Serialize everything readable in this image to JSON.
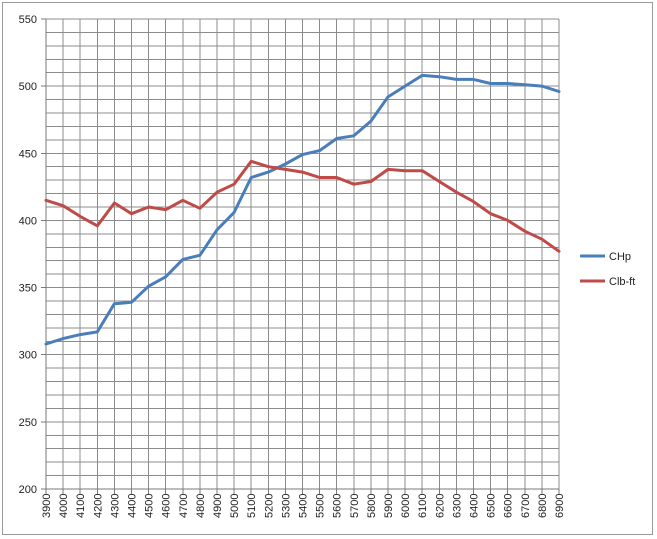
{
  "chart_data": {
    "type": "line",
    "title": "",
    "xlabel": "",
    "ylabel": "",
    "x": [
      3900,
      4000,
      4100,
      4200,
      4300,
      4400,
      4500,
      4600,
      4700,
      4800,
      4900,
      5000,
      5100,
      5200,
      5300,
      5400,
      5500,
      5600,
      5700,
      5800,
      5900,
      6000,
      6100,
      6200,
      6300,
      6400,
      6500,
      6600,
      6700,
      6800,
      6900
    ],
    "ylim": [
      200,
      550
    ],
    "yticks": [
      200,
      250,
      300,
      350,
      400,
      450,
      500,
      550
    ],
    "y_minor_step": 10,
    "grid": true,
    "legend_position": "right",
    "series": [
      {
        "name": "CHp",
        "color": "#4a7ebb",
        "values": [
          308,
          312,
          315,
          317,
          338,
          339,
          351,
          358,
          371,
          374,
          393,
          406,
          432,
          436,
          442,
          449,
          452,
          461,
          463,
          474,
          492,
          500,
          508,
          507,
          505,
          505,
          502,
          502,
          501,
          500,
          496
        ]
      },
      {
        "name": "Clb-ft",
        "color": "#be4b48",
        "values": [
          415,
          411,
          403,
          396,
          413,
          405,
          410,
          408,
          415,
          409,
          421,
          427,
          444,
          440,
          438,
          436,
          432,
          432,
          427,
          429,
          438,
          437,
          437,
          429,
          421,
          414,
          405,
          400,
          392,
          386,
          377
        ]
      }
    ]
  }
}
